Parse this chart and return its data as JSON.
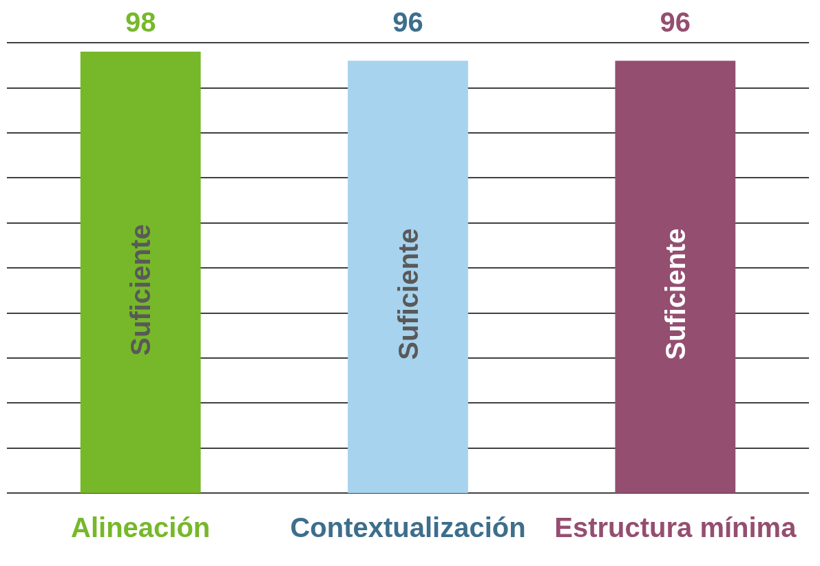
{
  "chart_data": {
    "type": "bar",
    "categories": [
      "Alineación",
      "Contextualización",
      "Estructura mínima"
    ],
    "values": [
      98,
      96,
      96
    ],
    "colors": [
      "#76b82a",
      "#a7d3ee",
      "#944e70"
    ],
    "ylim": [
      0,
      100
    ],
    "yticks": [
      0,
      10,
      20,
      30,
      40,
      50,
      60,
      70,
      80,
      90,
      100
    ],
    "grid": "y",
    "tick_labels": "x",
    "data_labels": true,
    "annotations": [
      "Suficiente",
      "Suficiente",
      "Suficiente"
    ]
  }
}
